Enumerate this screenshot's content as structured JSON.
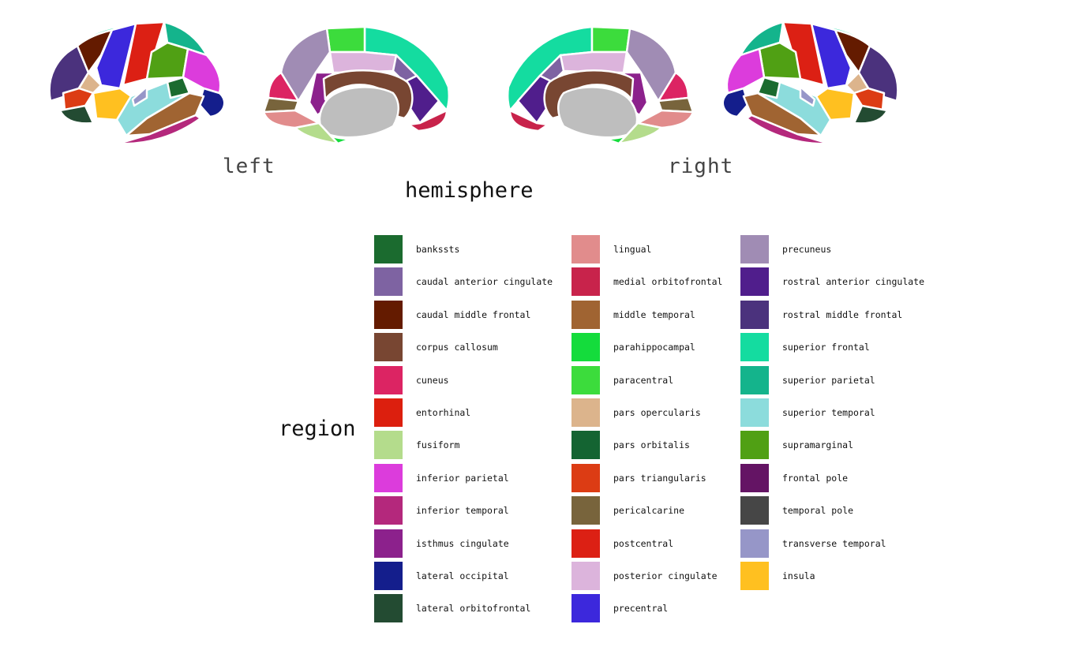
{
  "hemisphere": {
    "title": "hemisphere",
    "left_label": "left",
    "right_label": "right"
  },
  "legend": {
    "title": "region",
    "columns": [
      [
        {
          "label": "bankssts",
          "color": "#1b6b2f"
        },
        {
          "label": "caudal anterior cingulate",
          "color": "#7e63a2"
        },
        {
          "label": "caudal middle frontal",
          "color": "#641b00"
        },
        {
          "label": "corpus callosum",
          "color": "#784632"
        },
        {
          "label": "cuneus",
          "color": "#dc2463"
        },
        {
          "label": "entorhinal",
          "color": "#dc1f0e"
        },
        {
          "label": "fusiform",
          "color": "#b4dc8c"
        },
        {
          "label": "inferior parietal",
          "color": "#dc3cdc"
        },
        {
          "label": "inferior temporal",
          "color": "#b4287c"
        },
        {
          "label": "isthmus cingulate",
          "color": "#8c218c"
        },
        {
          "label": "lateral occipital",
          "color": "#141e8c"
        },
        {
          "label": "lateral orbitofrontal",
          "color": "#234b32"
        }
      ],
      [
        {
          "label": "lingual",
          "color": "#e18c8c"
        },
        {
          "label": "medial orbitofrontal",
          "color": "#c8234b"
        },
        {
          "label": "middle temporal",
          "color": "#a06432"
        },
        {
          "label": "parahippocampal",
          "color": "#14dc3c"
        },
        {
          "label": "paracentral",
          "color": "#3cdc3c"
        },
        {
          "label": "pars opercularis",
          "color": "#dcb48c"
        },
        {
          "label": "pars orbitalis",
          "color": "#146432"
        },
        {
          "label": "pars triangularis",
          "color": "#dc3c14"
        },
        {
          "label": "pericalcarine",
          "color": "#78643c"
        },
        {
          "label": "postcentral",
          "color": "#dc2014"
        },
        {
          "label": "posterior cingulate",
          "color": "#dcb4dc"
        },
        {
          "label": "precentral",
          "color": "#3c28dc"
        }
      ],
      [
        {
          "label": "precuneus",
          "color": "#a08cb4"
        },
        {
          "label": "rostral anterior cingulate",
          "color": "#501e8c"
        },
        {
          "label": "rostral middle frontal",
          "color": "#4b327d"
        },
        {
          "label": "superior frontal",
          "color": "#14dca0"
        },
        {
          "label": "superior parietal",
          "color": "#14b48c"
        },
        {
          "label": "superior temporal",
          "color": "#8cdcdc"
        },
        {
          "label": "supramarginal",
          "color": "#50a014"
        },
        {
          "label": "frontal pole",
          "color": "#641464"
        },
        {
          "label": "temporal pole",
          "color": "#464646"
        },
        {
          "label": "transverse temporal",
          "color": "#9696c8"
        },
        {
          "label": "insula",
          "color": "#ffc020"
        }
      ]
    ]
  },
  "colors": {
    "medial_wall": "#bebebe",
    "outline": "#ffffff"
  }
}
